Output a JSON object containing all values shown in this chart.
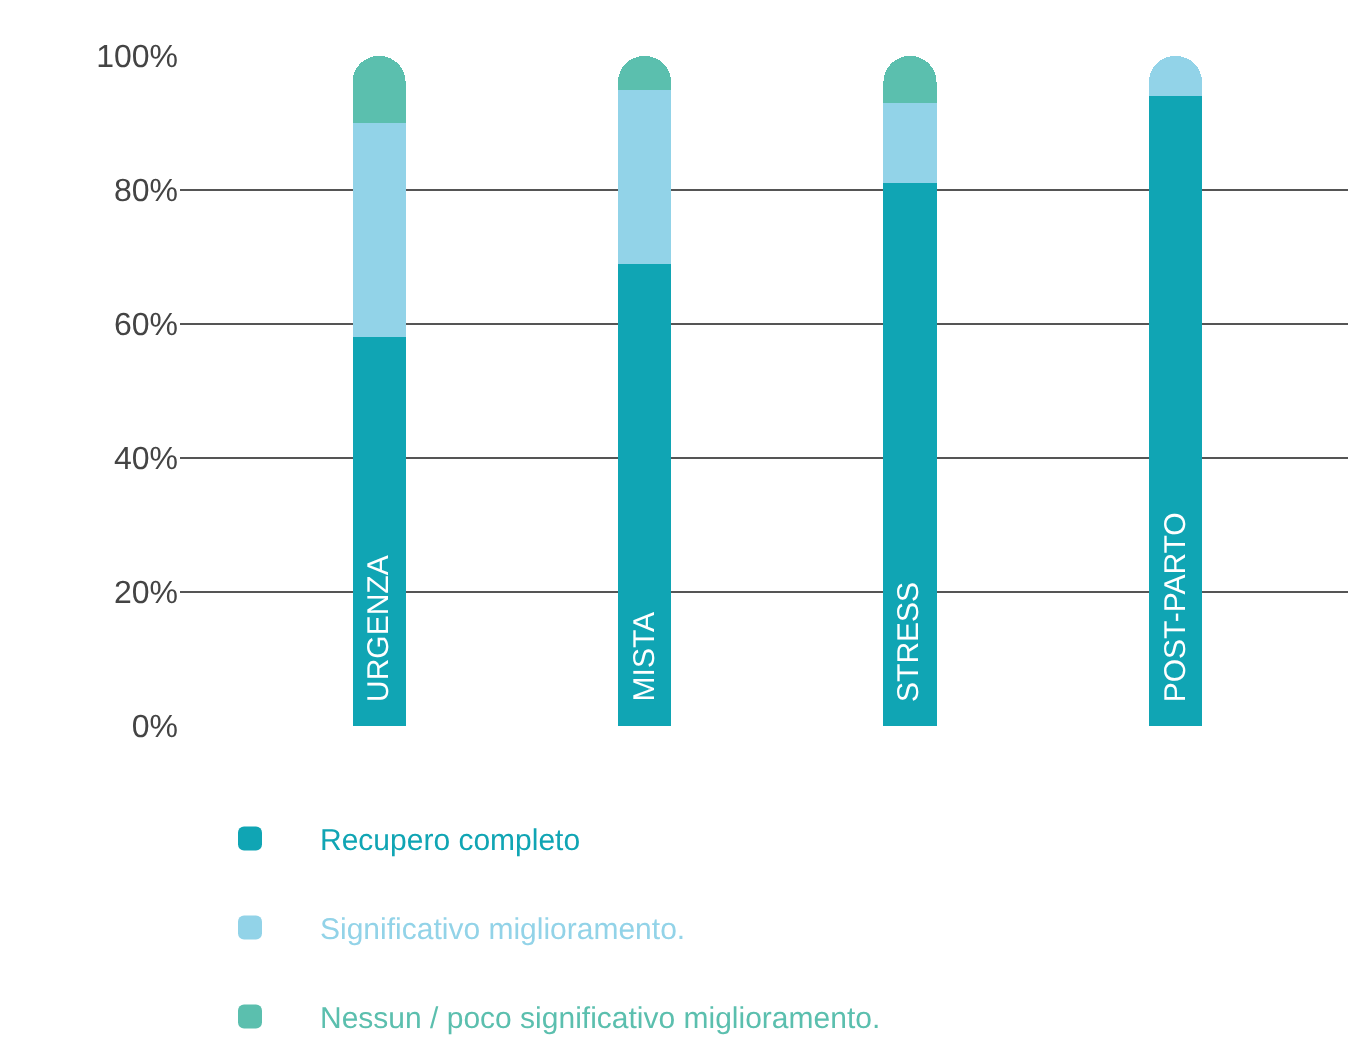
{
  "chart_data": {
    "type": "bar",
    "stacked": true,
    "categories": [
      "URGENZA",
      "MISTA",
      "STRESS",
      "POST-PARTO"
    ],
    "series": [
      {
        "name": "Recupero completo",
        "color": "#10a5b4",
        "values": [
          58,
          69,
          81,
          94
        ]
      },
      {
        "name": "Significativo miglioramento.",
        "color": "#92d3e8",
        "values": [
          32,
          26,
          12,
          6
        ]
      },
      {
        "name": "Nessun / poco significativo miglioramento.",
        "color": "#5bbfae",
        "values": [
          10,
          5,
          7,
          0
        ]
      }
    ],
    "ylim": [
      0,
      100
    ],
    "yticks": [
      {
        "value": 0,
        "label": "0%"
      },
      {
        "value": 20,
        "label": "20%"
      },
      {
        "value": 40,
        "label": "40%"
      },
      {
        "value": 60,
        "label": "60%"
      },
      {
        "value": 80,
        "label": "80%"
      },
      {
        "value": 100,
        "label": "100%"
      }
    ],
    "grid": "y",
    "legend": "bottom left"
  }
}
